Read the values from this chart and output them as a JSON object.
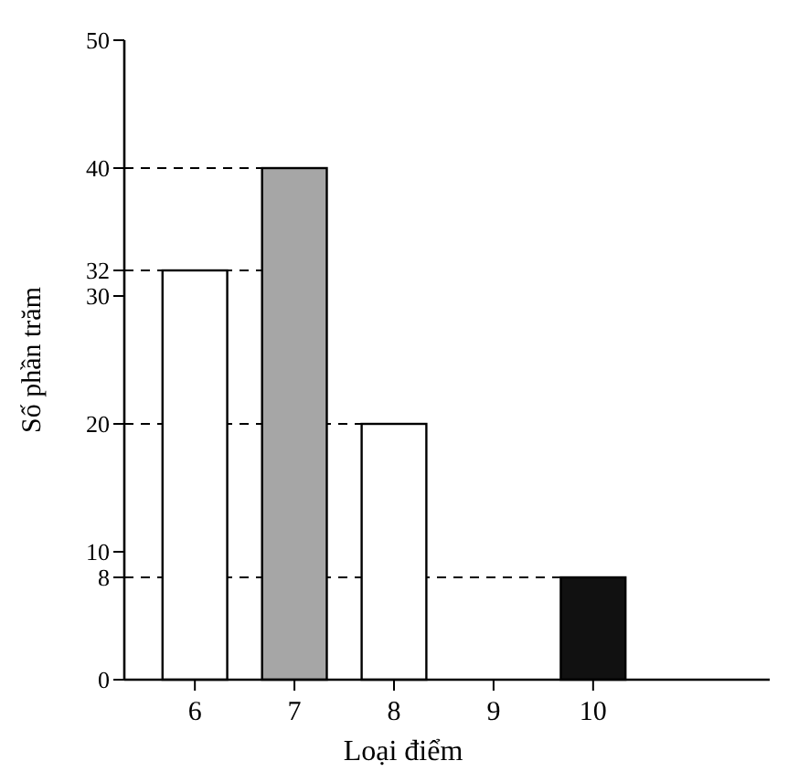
{
  "chart_data": {
    "type": "bar",
    "xlabel": "Loại điểm",
    "ylabel": "Số phần trăm",
    "categories": [
      "6",
      "7",
      "8",
      "9",
      "10"
    ],
    "values": [
      32,
      40,
      20,
      0,
      8
    ],
    "colors": [
      "#ffffff",
      "#a6a6a6",
      "#ffffff",
      "#ffffff",
      "#111111"
    ],
    "ylim": [
      0,
      50
    ],
    "yticks": [
      0,
      8,
      10,
      20,
      30,
      32,
      40,
      50
    ],
    "ref_lines": [
      {
        "axis": "y",
        "value": 40,
        "line_style": "dashed"
      },
      {
        "axis": "y",
        "value": 32,
        "line_style": "dashed"
      },
      {
        "axis": "y",
        "value": 20,
        "line_style": "dashed"
      },
      {
        "axis": "y",
        "value": 8,
        "line_style": "dashed"
      }
    ],
    "grid": false
  }
}
